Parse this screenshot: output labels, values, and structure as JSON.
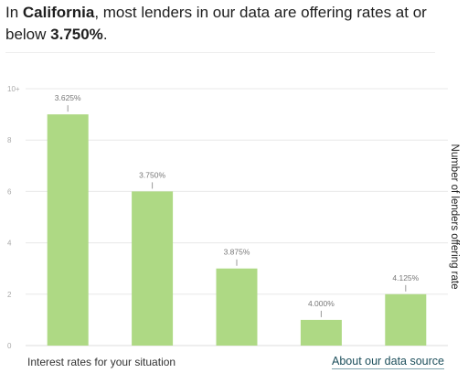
{
  "headline": {
    "prefix": "In ",
    "state": "California",
    "middle": ", most lenders in our data are offering rates at or below ",
    "rate": "3.750%",
    "suffix": "."
  },
  "footer": {
    "xlabel": "Interest rates for your situation",
    "link_label": "About our data source"
  },
  "colors": {
    "bar": "#aed984",
    "grid": "#e8e8e8",
    "tick_text": "#aaaaaa",
    "label_text": "#777777",
    "link": "#1d4f5c"
  },
  "chart_data": {
    "type": "bar",
    "categories": [
      "3.625%",
      "3.750%",
      "3.875%",
      "4.000%",
      "4.125%"
    ],
    "values": [
      9,
      6,
      3,
      1,
      2
    ],
    "xlabel": "Interest rates for your situation",
    "ylabel": "Number of lenders offering rate",
    "ylim": [
      0,
      10
    ],
    "yticks": [
      "0",
      "2",
      "4",
      "6",
      "8",
      "10+"
    ],
    "grid": true,
    "legend": "none"
  }
}
